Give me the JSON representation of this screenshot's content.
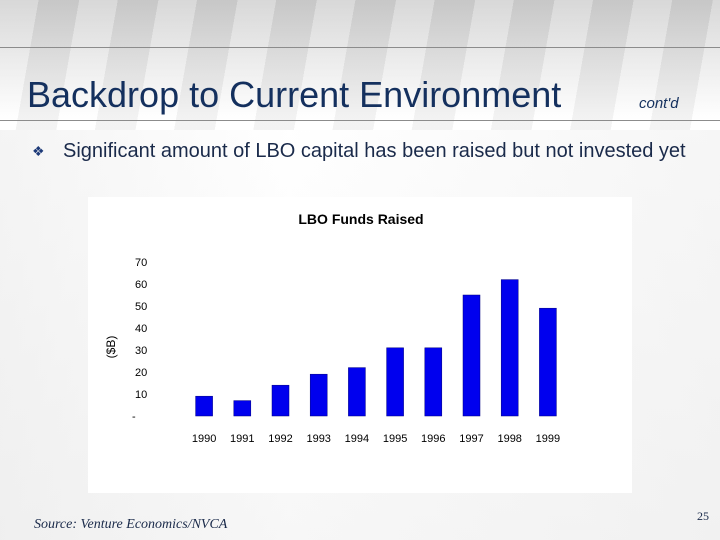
{
  "slide": {
    "title": "Backdrop to Current Environment",
    "title_suffix": "cont'd",
    "bullet": "Significant amount of LBO capital has been raised but not invested yet",
    "source": "Source: Venture Economics/NVCA",
    "page_number": "25"
  },
  "colors": {
    "title": "#14305e",
    "bar": "#0000ee",
    "text": "#1a2a4a"
  },
  "chart_data": {
    "type": "bar",
    "title": "LBO Funds Raised",
    "ylabel": "($B)",
    "xlabel": "",
    "categories": [
      "1990",
      "1991",
      "1992",
      "1993",
      "1994",
      "1995",
      "1996",
      "1997",
      "1998",
      "1999"
    ],
    "values": [
      9,
      7,
      14,
      19,
      22,
      31,
      31,
      55,
      62,
      49
    ],
    "ylim": [
      0,
      70
    ],
    "yticks": [
      "-",
      "10",
      "20",
      "30",
      "40",
      "50",
      "60",
      "70"
    ],
    "grid": false,
    "legend": "none"
  }
}
